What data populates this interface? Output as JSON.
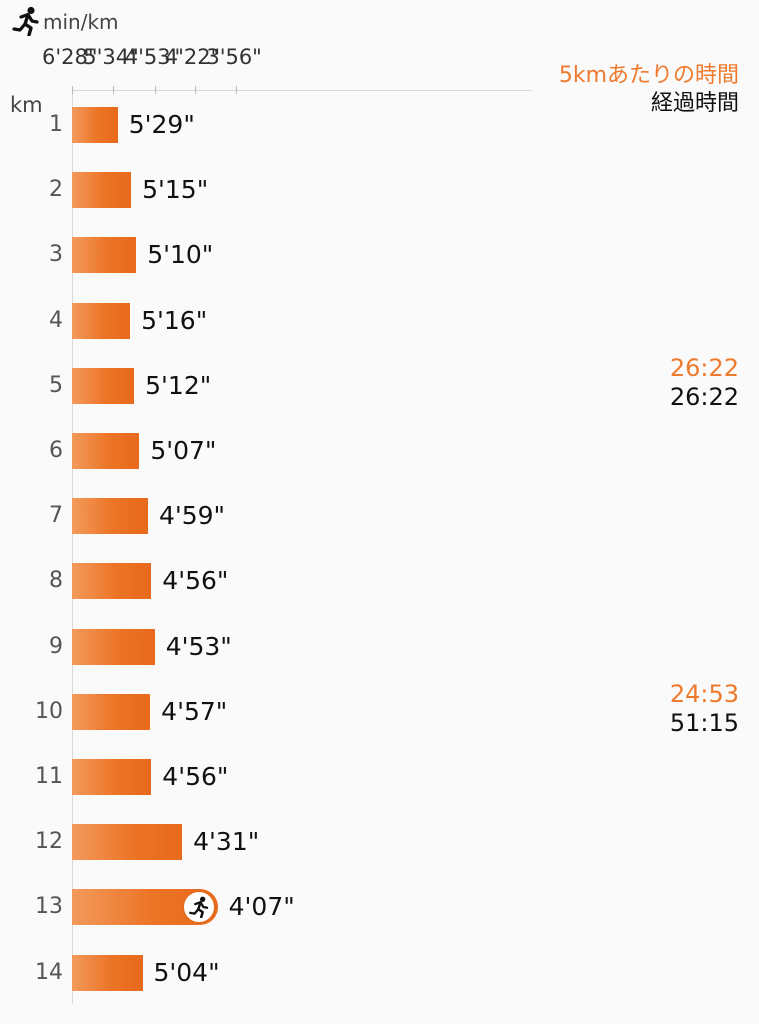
{
  "header": {
    "unit": "min/km",
    "row_unit": "km"
  },
  "legend": {
    "split_title": "5kmあたりの時間",
    "elapsed_title": "経過時間"
  },
  "five_km_splits": [
    {
      "after_km": 5,
      "split": "26:22",
      "elapsed": "26:22"
    },
    {
      "after_km": 10,
      "split": "24:53",
      "elapsed": "51:15"
    }
  ],
  "current_km": 13,
  "colors": {
    "bar_start": "#f29a5c",
    "bar_end": "#e8691b",
    "accent_text": "#ee7a2d",
    "background": "#fafafa"
  },
  "chart_data": {
    "type": "bar",
    "orientation": "horizontal",
    "xlabel": "min/km",
    "ylabel": "km",
    "x_axis_ticks": [
      "6'28\"",
      "5'34\"",
      "4'53\"",
      "4'22\"",
      "3'56\""
    ],
    "x_axis_scale": "speed (pace axis, faster to the right)",
    "categories": [
      "1",
      "2",
      "3",
      "4",
      "5",
      "6",
      "7",
      "8",
      "9",
      "10",
      "11",
      "12",
      "13",
      "14"
    ],
    "values": [
      329,
      315,
      310,
      316,
      312,
      307,
      299,
      296,
      293,
      297,
      296,
      271,
      247,
      304
    ],
    "value_labels": [
      "5'29\"",
      "5'15\"",
      "5'10\"",
      "5'16\"",
      "5'12\"",
      "5'07\"",
      "4'59\"",
      "4'56\"",
      "4'53\"",
      "4'57\"",
      "4'56\"",
      "4'31\"",
      "4'07\"",
      "5'04\""
    ],
    "value_unit": "seconds per km",
    "xlim_pace_labels": [
      "6'28\"",
      "3'56\""
    ]
  }
}
